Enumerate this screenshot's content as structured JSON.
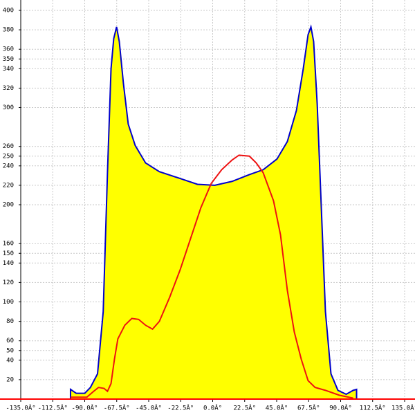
{
  "chart_data": {
    "type": "line",
    "fill_color": "#ffff00",
    "xlim": [
      -135,
      135
    ],
    "xticks": [
      {
        "value": -135,
        "label": "-135.0Â°"
      },
      {
        "value": -112.5,
        "label": "-112.5Â°"
      },
      {
        "value": -90,
        "label": "-90.0Â°"
      },
      {
        "value": -67.5,
        "label": "-67.5Â°"
      },
      {
        "value": -45,
        "label": "-45.0Â°"
      },
      {
        "value": -22.5,
        "label": "-22.5Â°"
      },
      {
        "value": 0,
        "label": "0.0Â°"
      },
      {
        "value": 22.5,
        "label": "22.5Â°"
      },
      {
        "value": 45,
        "label": "45.0Â°"
      },
      {
        "value": 67.5,
        "label": "67.5Â°"
      },
      {
        "value": 90,
        "label": "90.0Â°"
      },
      {
        "value": 112.5,
        "label": "112.5Â°"
      },
      {
        "value": 135,
        "label": "135.0Â°"
      }
    ],
    "ylim": [
      0,
      400
    ],
    "yticks": [
      20,
      40,
      50,
      60,
      80,
      100,
      120,
      140,
      150,
      160,
      200,
      220,
      240,
      250,
      260,
      300,
      320,
      340,
      350,
      360,
      380,
      400
    ],
    "grid": true,
    "axis_color": "#ff0000",
    "series": [
      {
        "color": "#0000cc",
        "filled": true,
        "x": [
          -100,
          -100,
          -96,
          -90,
          -86,
          -81,
          -77,
          -74,
          -71.5,
          -69.6,
          -67.6,
          -65.7,
          -62.8,
          -59.4,
          -54.5,
          -47.2,
          -37.5,
          -22.9,
          -10.7,
          1.5,
          13.6,
          25.8,
          35.5,
          45.2,
          52.5,
          58.9,
          63.7,
          67.1,
          69.1,
          71,
          73.5,
          76.4,
          79.3,
          83.2,
          88.1,
          93.9,
          98.8,
          101.2,
          101.2
        ],
        "values": [
          0,
          10,
          6,
          6,
          12,
          26,
          90,
          233,
          340,
          371,
          383,
          368,
          325,
          283,
          261,
          243,
          234,
          227,
          221,
          220,
          224,
          231,
          236,
          247,
          265,
          297,
          340,
          375,
          383,
          368,
          304,
          197,
          90,
          26,
          9,
          5,
          9,
          10,
          0
        ]
      },
      {
        "color": "#ee1111",
        "filled": false,
        "x": [
          -100,
          -88.5,
          -83.7,
          -80.3,
          -76.4,
          -74,
          -71.5,
          -69.1,
          -66.7,
          -61.8,
          -56.9,
          -52.1,
          -47.2,
          -42.3,
          -37.5,
          -30.2,
          -22.9,
          -15.6,
          -8.3,
          -1,
          6.3,
          13.6,
          18.5,
          25.8,
          30.6,
          35.5,
          42.8,
          47.7,
          52.5,
          57.4,
          62.3,
          67.1,
          72,
          79.3,
          89,
          98.8
        ],
        "values": [
          2,
          2,
          8,
          12,
          11,
          8,
          16,
          41,
          62,
          76,
          83,
          82,
          76,
          72,
          80,
          105,
          133,
          165,
          197,
          222,
          236,
          246,
          251,
          250,
          243,
          233,
          204,
          169,
          112,
          69,
          41,
          19,
          12,
          9,
          4,
          1
        ]
      }
    ]
  }
}
